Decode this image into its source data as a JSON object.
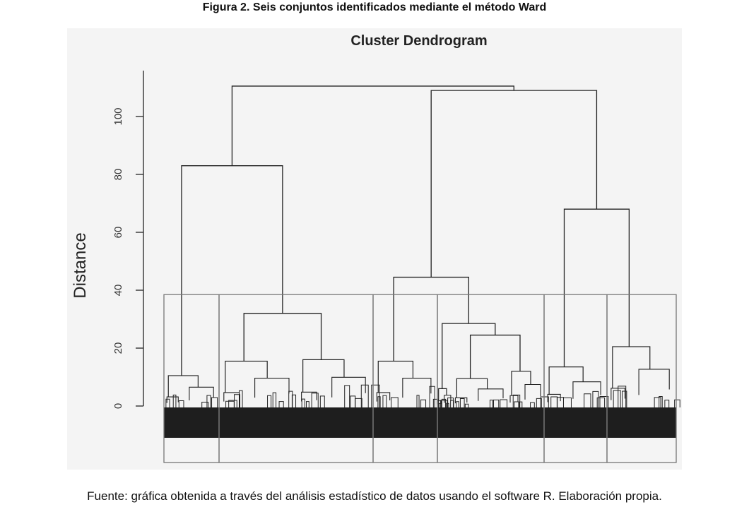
{
  "figure_title": "Figura 2.  Seis conjuntos identificados mediante el método Ward",
  "source_note": "Fuente: gráfica obtenida a través del análisis estadístico de datos usando el software R. Elaboración propia.",
  "chart_data": {
    "type": "dendrogram",
    "title": "Cluster Dendrogram",
    "ylabel": "Distance",
    "xlabel": "",
    "ylim": [
      0,
      110
    ],
    "yticks": [
      0,
      20,
      40,
      60,
      80,
      100
    ],
    "method": "ward",
    "n_clusters": 6,
    "cut_height": 38.5,
    "merges": [
      {
        "id": "root",
        "height": 110.5,
        "children": [
          "L",
          "R"
        ]
      },
      {
        "id": "L",
        "height": 83,
        "children": [
          "A",
          "B"
        ]
      },
      {
        "id": "R",
        "height": 109,
        "children": [
          "CD",
          "EF"
        ]
      },
      {
        "id": "B",
        "height": 32,
        "children": [
          "B1",
          "B2"
        ]
      },
      {
        "id": "CD",
        "height": 44.5,
        "children": [
          "C",
          "D"
        ]
      },
      {
        "id": "EF",
        "height": 68,
        "children": [
          "E",
          "F"
        ]
      },
      {
        "id": "D",
        "height": 28.5,
        "children": [
          "D1",
          "D2"
        ]
      },
      {
        "id": "D2",
        "height": 24.5,
        "children": [
          "D2a",
          "D2b"
        ]
      }
    ],
    "clusters": [
      {
        "id": "A",
        "top_height": 10.5
      },
      {
        "id": "B1",
        "top_height": 15.5
      },
      {
        "id": "B2",
        "top_height": 16
      },
      {
        "id": "C",
        "top_height": 15.5
      },
      {
        "id": "D1",
        "top_height": 6
      },
      {
        "id": "D2a",
        "top_height": 9.5
      },
      {
        "id": "D2b",
        "top_height": 12
      },
      {
        "id": "E",
        "top_height": 13.5
      },
      {
        "id": "F",
        "top_height": 20.5
      }
    ]
  }
}
